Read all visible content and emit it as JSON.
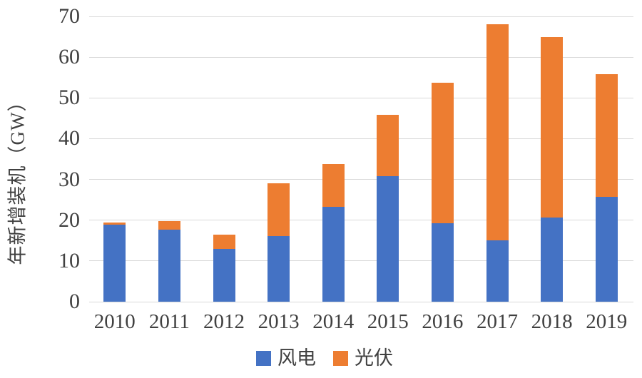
{
  "chart_data": {
    "type": "bar",
    "stacked": true,
    "title": "",
    "xlabel": "",
    "ylabel": "年新增装机（GW）",
    "categories": [
      "2010",
      "2011",
      "2012",
      "2013",
      "2014",
      "2015",
      "2016",
      "2017",
      "2018",
      "2019"
    ],
    "series": [
      {
        "key": "wind",
        "name": "风电",
        "color": "#4472C4",
        "values": [
          18.9,
          17.6,
          13.0,
          16.1,
          23.2,
          30.8,
          19.3,
          15.0,
          20.6,
          25.7
        ]
      },
      {
        "key": "solar",
        "name": "光伏",
        "color": "#ED7D31",
        "values": [
          0.5,
          2.1,
          3.5,
          13.0,
          10.6,
          15.1,
          34.5,
          53.1,
          44.3,
          30.1
        ]
      }
    ],
    "ylim": [
      0,
      70
    ],
    "yticks": [
      0,
      10,
      20,
      30,
      40,
      50,
      60,
      70
    ],
    "grid": true,
    "gridline_color": "#d9d9d9",
    "text_color": "#404040",
    "legend_position": "bottom"
  }
}
